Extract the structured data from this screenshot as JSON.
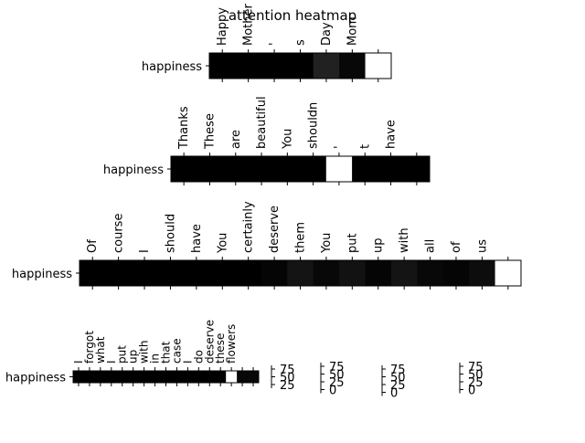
{
  "chart_data": {
    "type": "heatmap",
    "title": "attention heatmap",
    "colormap": {
      "low": "#000000",
      "high": "#ffffff"
    },
    "grid": false,
    "rows": [
      {
        "row_label": "happiness",
        "tokens": [
          "Happy",
          "Mother",
          "'",
          "s",
          "Day",
          "Mom",
          ""
        ],
        "values": [
          0.0,
          0.0,
          0.0,
          0.0,
          0.13,
          0.03,
          1.0
        ]
      },
      {
        "row_label": "happiness",
        "tokens": [
          "Thanks",
          "These",
          "are",
          "beautiful",
          "You",
          "shouldn",
          "'",
          "t",
          "have",
          ""
        ],
        "values": [
          0.0,
          0.0,
          0.0,
          0.0,
          0.0,
          0.0,
          1.0,
          0.0,
          0.0,
          0.0
        ]
      },
      {
        "row_label": "happiness",
        "tokens": [
          "Of",
          "course",
          "I",
          "should",
          "have",
          "You",
          "certainly",
          "deserve",
          "them",
          "You",
          "put",
          "up",
          "with",
          "all",
          "of",
          "us",
          ""
        ],
        "values": [
          0.0,
          0.0,
          0.0,
          0.0,
          0.0,
          0.0,
          0.0,
          0.02,
          0.08,
          0.03,
          0.07,
          0.02,
          0.08,
          0.03,
          0.02,
          0.05,
          1.0
        ]
      },
      {
        "row_label": "happiness",
        "tokens": [
          "I",
          "forgot",
          "what",
          "I",
          "put",
          "up",
          "with",
          "in",
          "that",
          "case",
          "I",
          "do",
          "deserve",
          "these",
          "flowers",
          "",
          ""
        ],
        "values": [
          0.0,
          0.0,
          0.0,
          0.0,
          0.0,
          0.0,
          0.0,
          0.0,
          0.0,
          0.0,
          0.0,
          0.0,
          0.0,
          0.0,
          1.0,
          0.03,
          0.03
        ]
      }
    ],
    "colorbars": [
      {
        "ticks": [
          "75",
          "50",
          "25"
        ]
      },
      {
        "ticks": [
          "75",
          "50",
          "25",
          "0"
        ]
      },
      {
        "ticks": [
          "75",
          "50",
          "25",
          "0"
        ]
      },
      {
        "ticks": [
          "75",
          "50",
          "25",
          "0"
        ]
      }
    ]
  }
}
